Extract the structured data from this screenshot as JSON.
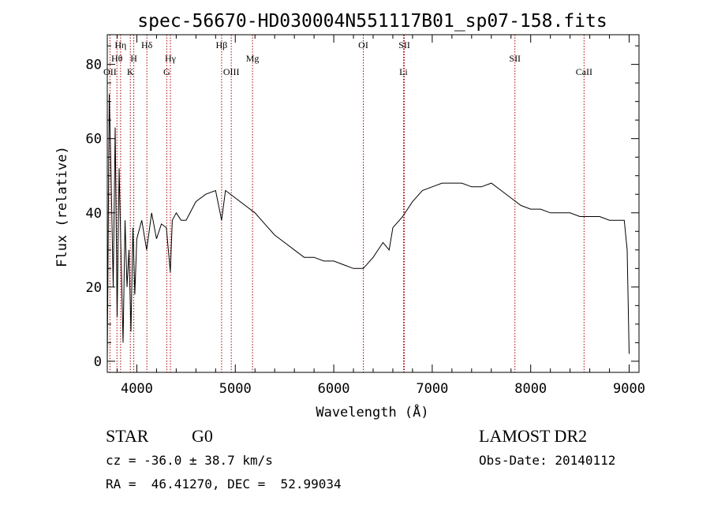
{
  "chart_data": {
    "type": "line",
    "title": "spec-56670-HD030004N551117B01_sp07-158.fits",
    "xlabel": "Wavelength (Å)",
    "ylabel": "Flux (relative)",
    "xlim": [
      3700,
      9100
    ],
    "ylim": [
      -3,
      88
    ],
    "xticks": [
      4000,
      5000,
      6000,
      7000,
      8000,
      9000
    ],
    "yticks": [
      0,
      20,
      40,
      60,
      80
    ],
    "grid": false,
    "series": [
      {
        "color": "#000000",
        "x": [
          3700,
          3720,
          3740,
          3760,
          3780,
          3800,
          3820,
          3840,
          3860,
          3880,
          3900,
          3920,
          3940,
          3960,
          3980,
          4000,
          4050,
          4100,
          4150,
          4200,
          4250,
          4300,
          4340,
          4360,
          4400,
          4450,
          4500,
          4600,
          4700,
          4800,
          4861,
          4900,
          5000,
          5100,
          5200,
          5300,
          5400,
          5500,
          5600,
          5700,
          5800,
          5900,
          6000,
          6100,
          6200,
          6300,
          6400,
          6500,
          6563,
          6600,
          6700,
          6800,
          6900,
          7000,
          7100,
          7200,
          7300,
          7400,
          7500,
          7600,
          7700,
          7800,
          7900,
          8000,
          8100,
          8200,
          8300,
          8400,
          8500,
          8600,
          8700,
          8800,
          8900,
          8950,
          8980,
          9000
        ],
        "y": [
          0,
          72,
          48,
          20,
          63,
          12,
          52,
          28,
          5,
          38,
          20,
          30,
          8,
          36,
          18,
          33,
          38,
          30,
          40,
          33,
          37,
          36,
          24,
          38,
          40,
          38,
          38,
          43,
          45,
          46,
          38,
          46,
          44,
          42,
          40,
          37,
          34,
          32,
          30,
          28,
          28,
          27,
          27,
          26,
          25,
          25,
          28,
          32,
          30,
          36,
          39,
          43,
          46,
          47,
          48,
          48,
          48,
          47,
          47,
          48,
          46,
          44,
          42,
          41,
          41,
          40,
          40,
          40,
          39,
          39,
          39,
          38,
          38,
          38,
          30,
          2
        ]
      }
    ],
    "spectral_lines": [
      {
        "label": "OII",
        "x": 3727,
        "row": 3
      },
      {
        "label": "Hθ",
        "x": 3798,
        "row": 2
      },
      {
        "label": "Hη",
        "x": 3835,
        "row": 1
      },
      {
        "label": "H",
        "x": 3969,
        "row": 2
      },
      {
        "label": "K",
        "x": 3934,
        "row": 3
      },
      {
        "label": "Hδ",
        "x": 4102,
        "row": 1
      },
      {
        "label": "Hγ",
        "x": 4341,
        "row": 2
      },
      {
        "label": "G",
        "x": 4304,
        "row": 3
      },
      {
        "label": "Hβ",
        "x": 4861,
        "row": 1
      },
      {
        "label": "OIII",
        "x": 4959,
        "row": 3
      },
      {
        "label": "Mg",
        "x": 5175,
        "row": 2
      },
      {
        "label": "OI",
        "x": 6300,
        "row": 1
      },
      {
        "label": "SII",
        "x": 6717,
        "row": 1
      },
      {
        "label": "Li",
        "x": 6708,
        "row": 3
      },
      {
        "label": "SII",
        "x": 7840,
        "row": 2
      },
      {
        "label": "CaII",
        "x": 8542,
        "row": 3
      }
    ],
    "line_marker_color": "#aa0000"
  },
  "info": {
    "object_class": "STAR",
    "subclass": "G0",
    "survey": "LAMOST DR2",
    "redshift": "cz = -36.0 ± 38.7 km/s",
    "obs_date": "Obs-Date: 20140112",
    "coords": "RA =  46.41270, DEC =  52.99034"
  }
}
